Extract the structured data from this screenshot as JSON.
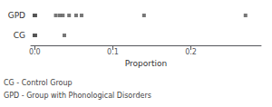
{
  "chart_data": {
    "type": "scatter",
    "categories": [
      "GPD",
      "CG"
    ],
    "values": [
      [
        0.0,
        0.0,
        0.0,
        0.0,
        0.0,
        0.0,
        0.0,
        0.0,
        0.0,
        0.027,
        0.032,
        0.036,
        0.044,
        0.053,
        0.06,
        0.14,
        0.27
      ],
      [
        0.0,
        0.0,
        0.0,
        0.0,
        0.0,
        0.0,
        0.0,
        0.0,
        0.0,
        0.0,
        0.038
      ]
    ],
    "xlabel": "Proportion",
    "xlim": [
      -0.005,
      0.29
    ],
    "xticks": [
      {
        "value": 0.0,
        "label": "0.0"
      },
      0.1,
      0.2
    ],
    "color": "#555555",
    "marker": "square",
    "grid": false,
    "annotations": [
      "CG - Control Group",
      "GPD - Group with Phonological Disorders"
    ]
  }
}
